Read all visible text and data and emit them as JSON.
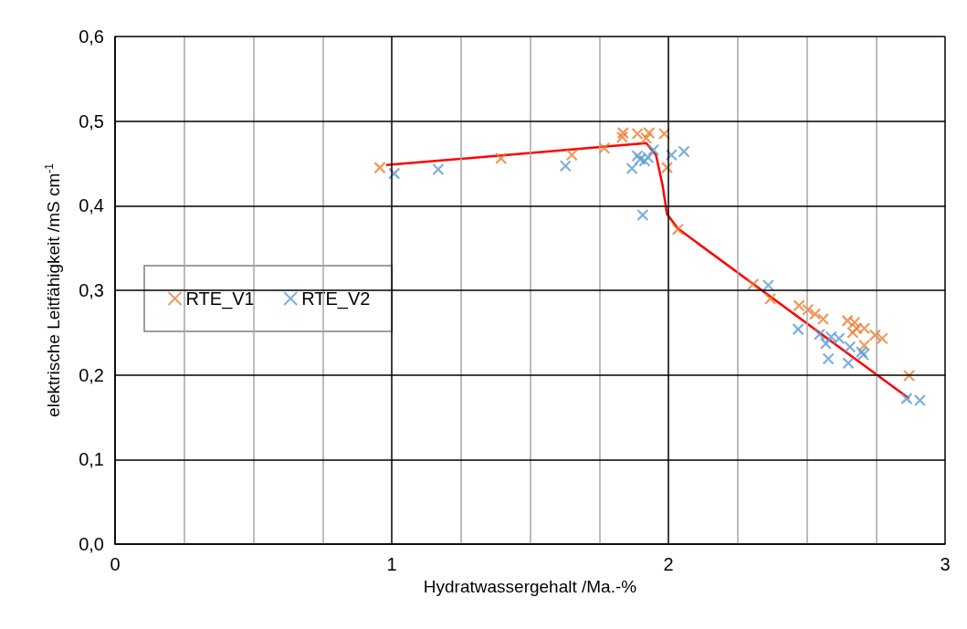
{
  "chart_data": {
    "type": "scatter",
    "xlabel": "Hydratwassergehalt /Ma.-%",
    "ylabel": "elektrische Leitfähigkeit /mS cm$^{-1}$",
    "xlim": [
      0,
      3
    ],
    "xticks": [
      0,
      {
        "value": 0.25,
        "label": null
      },
      {
        "value": 0.5,
        "label": null
      },
      {
        "value": 0.75,
        "label": null
      },
      1,
      {
        "value": 1.25,
        "label": null
      },
      {
        "value": 1.5,
        "label": null
      },
      {
        "value": 1.75,
        "label": null
      },
      2,
      {
        "value": 2.25,
        "label": null
      },
      {
        "value": 2.5,
        "label": null
      },
      {
        "value": 2.75,
        "label": null
      },
      3
    ],
    "ylim": [
      0,
      0.6
    ],
    "yticks": [
      {
        "value": 0,
        "label": "0,0"
      },
      {
        "value": 0.1,
        "label": "0,1"
      },
      {
        "value": 0.2,
        "label": "0,2"
      },
      {
        "value": 0.3,
        "label": "0,3"
      },
      {
        "value": 0.4,
        "label": "0,4"
      },
      {
        "value": 0.5,
        "label": "0,5"
      },
      {
        "value": 0.6,
        "label": "0,6"
      }
    ],
    "grid": true,
    "legend": "left",
    "marker": "cross",
    "series": [
      {
        "name": "RTE_V1",
        "color": "#ed7d31",
        "x": [
          0.957,
          1.395,
          1.651,
          1.768,
          1.836,
          1.833,
          1.888,
          1.93,
          1.92,
          1.985,
          1.995,
          2.034,
          2.306,
          2.368,
          2.472,
          2.504,
          2.53,
          2.559,
          2.647,
          2.673,
          2.68,
          2.666,
          2.708,
          2.747,
          2.773,
          2.708,
          2.87
        ],
        "values": [
          0.445,
          0.456,
          0.46,
          0.468,
          0.486,
          0.481,
          0.485,
          0.486,
          0.48,
          0.485,
          0.445,
          0.372,
          0.307,
          0.29,
          0.282,
          0.277,
          0.272,
          0.266,
          0.264,
          0.262,
          0.255,
          0.25,
          0.255,
          0.247,
          0.243,
          0.235,
          0.199
        ]
      },
      {
        "name": "RTE_V2",
        "color": "#5b9bd5",
        "x": [
          1.009,
          1.168,
          1.628,
          1.868,
          1.888,
          1.898,
          1.914,
          1.927,
          1.946,
          1.907,
          2.011,
          2.056,
          2.361,
          2.469,
          2.546,
          2.569,
          2.588,
          2.617,
          2.578,
          2.656,
          2.65,
          2.698,
          2.705,
          2.861,
          2.909
        ],
        "values": [
          0.438,
          0.443,
          0.447,
          0.444,
          0.459,
          0.455,
          0.453,
          0.457,
          0.466,
          0.389,
          0.46,
          0.464,
          0.306,
          0.254,
          0.248,
          0.237,
          0.245,
          0.243,
          0.219,
          0.233,
          0.214,
          0.227,
          0.224,
          0.172,
          0.17
        ]
      },
      {
        "type": "line",
        "color": "#ff0000",
        "marker": "none",
        "x": [
          0.98,
          1.92,
          1.955,
          1.979,
          1.995,
          2.034,
          2.87
        ],
        "values": [
          0.448,
          0.474,
          0.46,
          0.424,
          0.39,
          0.373,
          0.172
        ]
      }
    ]
  }
}
